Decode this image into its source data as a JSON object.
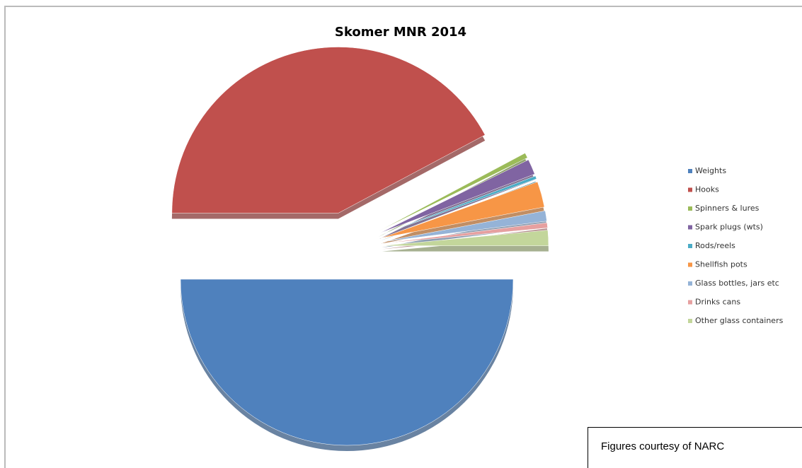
{
  "chart_data": {
    "type": "pie",
    "title": "Skomer MNR 2014",
    "categories": [
      "Weights",
      "Hooks",
      "Spinners & lures",
      "Spark plugs (wts)",
      "Rods/reels",
      "Shellfish pots",
      "Glass bottles, jars etc",
      "Drinks cans",
      "Other glass containers"
    ],
    "values": [
      50,
      42.2,
      0.5,
      1.5,
      0.3,
      2.5,
      1,
      0.5,
      1.5
    ],
    "colors": [
      "#4f81bd",
      "#c0504d",
      "#9bbb59",
      "#8064a2",
      "#4bacc6",
      "#f79646",
      "#95b3d7",
      "#e6a0a0",
      "#c3d69b"
    ],
    "legend": "right",
    "annotation": "Figures courtesy of NARC"
  }
}
